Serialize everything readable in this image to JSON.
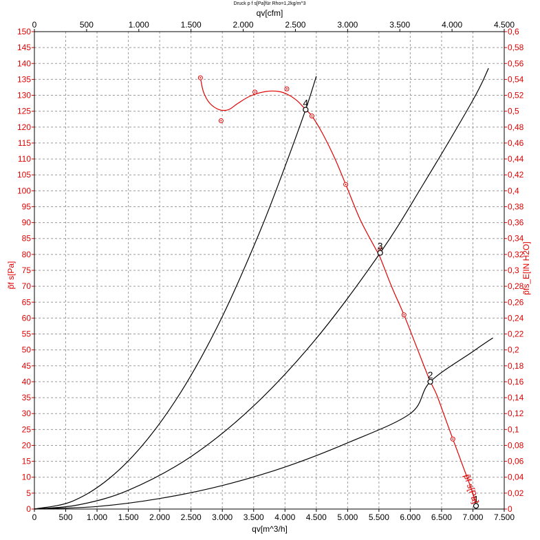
{
  "chart_data": {
    "type": "line",
    "title": "Druck p f s[Pa]für Rho=1,2kg/m^3",
    "xlabel": "qv[m^3/h]",
    "x2label": "qv[cfm]",
    "ylabel": "p̃f s[Pa]",
    "y2label": "p̃fs_E[IN H2O]",
    "xlim": [
      0,
      7500
    ],
    "x2lim": [
      0,
      4500
    ],
    "ylim": [
      0,
      150
    ],
    "y2lim": [
      0,
      0.6
    ],
    "grid": true,
    "x_ticks": [
      "0",
      "500",
      "1.000",
      "1.500",
      "2.000",
      "2.500",
      "3.000",
      "3.500",
      "4.000",
      "4.500",
      "5.000",
      "5.500",
      "6.000",
      "6.500",
      "7.000",
      "7.500"
    ],
    "x2_ticks": [
      "0",
      "500",
      "1.000",
      "1.500",
      "2.000",
      "2.500",
      "3.000",
      "3.500",
      "4.000",
      "4.500"
    ],
    "y_ticks": [
      "0",
      "5",
      "10",
      "15",
      "20",
      "25",
      "30",
      "35",
      "40",
      "45",
      "50",
      "55",
      "60",
      "65",
      "70",
      "75",
      "80",
      "85",
      "90",
      "95",
      "100",
      "105",
      "110",
      "115",
      "120",
      "125",
      "130",
      "135",
      "140",
      "145",
      "150"
    ],
    "y2_ticks": [
      "0",
      "0,02",
      "0,04",
      "0,06",
      "0,08",
      "0,1",
      "0,12",
      "0,14",
      "0,16",
      "0,18",
      "0,2",
      "0,22",
      "0,24",
      "0,26",
      "0,28",
      "0,3",
      "0,32",
      "0,34",
      "0,36",
      "0,38",
      "0,4",
      "0,42",
      "0,44",
      "0,46",
      "0,48",
      "0,5",
      "0,52",
      "0,54",
      "0,56",
      "0,58",
      "0,6"
    ],
    "series": [
      {
        "name": "p̃f s[Pa]",
        "color": "#e00000",
        "points": [
          [
            2650,
            135.5
          ],
          [
            2700,
            131
          ],
          [
            2800,
            127.5
          ],
          [
            2950,
            125.5
          ],
          [
            3100,
            125.5
          ],
          [
            3250,
            127.5
          ],
          [
            3450,
            129.8
          ],
          [
            3700,
            131.2
          ],
          [
            3900,
            131.2
          ],
          [
            4050,
            130.2
          ],
          [
            4200,
            128.2
          ],
          [
            4330,
            125.5
          ],
          [
            4430,
            123.5
          ],
          [
            4600,
            118
          ],
          [
            4800,
            110
          ],
          [
            4970,
            102
          ],
          [
            5200,
            91
          ],
          [
            5440,
            82
          ],
          [
            5520,
            79
          ],
          [
            5700,
            70
          ],
          [
            5900,
            61
          ],
          [
            6100,
            51
          ],
          [
            6300,
            41
          ],
          [
            6420,
            36
          ],
          [
            6550,
            29
          ],
          [
            6680,
            22
          ],
          [
            6850,
            13
          ],
          [
            6980,
            6
          ],
          [
            7060,
            1
          ]
        ],
        "markers": [
          [
            2650,
            135.5
          ],
          [
            2980,
            122
          ],
          [
            3520,
            131
          ],
          [
            4030,
            132
          ],
          [
            4430,
            123.5
          ],
          [
            4970,
            102
          ],
          [
            5520,
            81.5
          ],
          [
            5900,
            61
          ],
          [
            6680,
            22
          ]
        ]
      },
      {
        "name": "system-curve-4",
        "color": "#000000",
        "points": [
          [
            0,
            0
          ],
          [
            600,
            2.4
          ],
          [
            1200,
            9.7
          ],
          [
            1800,
            21.8
          ],
          [
            2400,
            38.7
          ],
          [
            3000,
            60.5
          ],
          [
            3600,
            87.2
          ],
          [
            4000,
            107.6
          ],
          [
            4330,
            125.5
          ],
          [
            4500,
            136
          ]
        ]
      },
      {
        "name": "system-curve-3",
        "color": "#000000",
        "points": [
          [
            0,
            0
          ],
          [
            700,
            1.3
          ],
          [
            1500,
            5.9
          ],
          [
            2500,
            16.5
          ],
          [
            3500,
            32.4
          ],
          [
            4500,
            53.6
          ],
          [
            5520,
            80.5
          ],
          [
            6200,
            101.8
          ],
          [
            7000,
            128.5
          ],
          [
            7250,
            138.5
          ]
        ]
      },
      {
        "name": "system-curve-2",
        "color": "#000000",
        "points": [
          [
            0,
            0
          ],
          [
            1000,
            0.8
          ],
          [
            2000,
            3.3
          ],
          [
            3000,
            7.4
          ],
          [
            4000,
            13.2
          ],
          [
            5000,
            20.8
          ],
          [
            6000,
            30
          ],
          [
            6320,
            40
          ],
          [
            7000,
            49.5
          ],
          [
            7320,
            53.8
          ]
        ]
      }
    ],
    "operating_points": [
      {
        "label": "4",
        "x": 4330,
        "y": 125.5
      },
      {
        "label": "3",
        "x": 5520,
        "y": 80.5
      },
      {
        "label": "2",
        "x": 6320,
        "y": 40
      },
      {
        "label": "1",
        "x": 7050,
        "y": 1
      }
    ],
    "curve_label": "p̃f s[Pa]"
  }
}
